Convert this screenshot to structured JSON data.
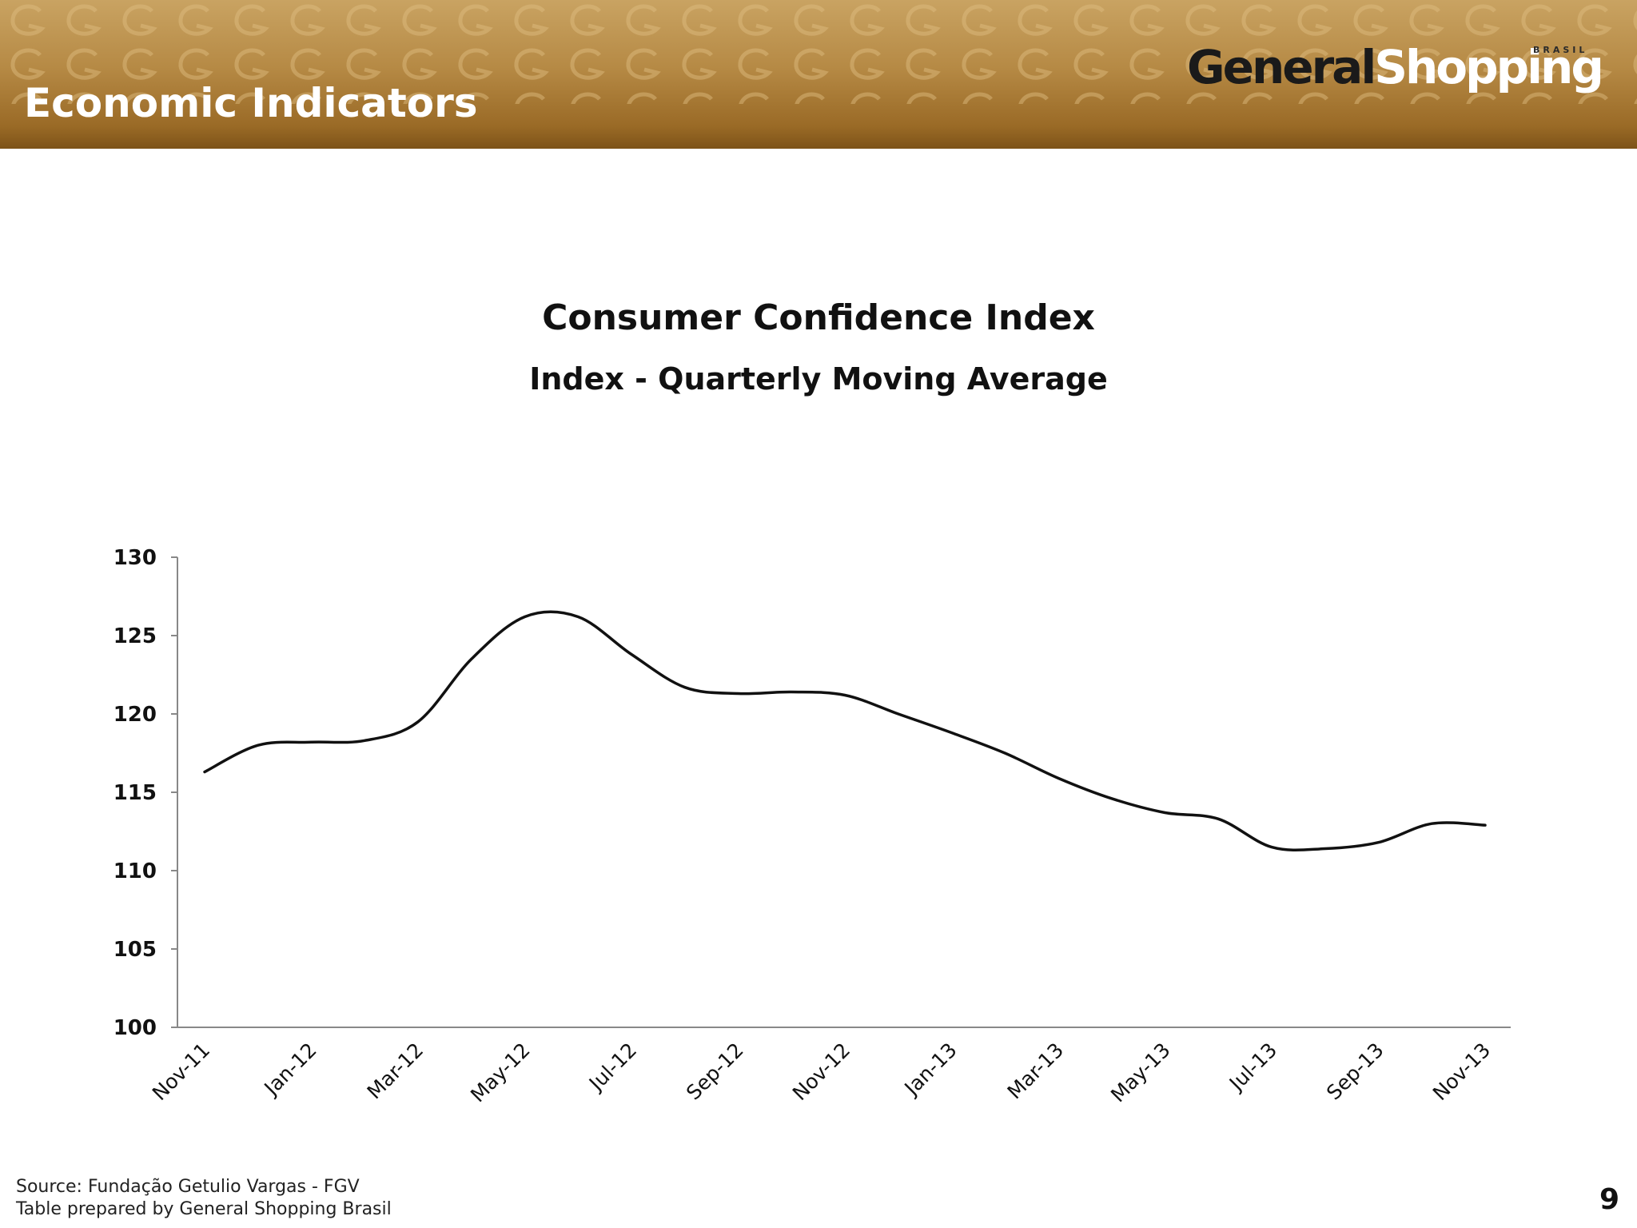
{
  "header": {
    "title": "Economic Indicators",
    "logo_general": "General",
    "logo_shopping": "Shopping",
    "logo_sub": "BRASIL"
  },
  "footer": {
    "source": "Source: Fundação Getulio Vargas - FGV",
    "prepared": "Table prepared by General Shopping Brasil",
    "page_number": "9"
  },
  "colors": {
    "header_gold": "#b68a45",
    "line": "#111111",
    "axis": "#888888"
  },
  "chart_data": {
    "type": "line",
    "title": "Consumer Confidence Index",
    "subtitle": "Index - Quarterly Moving Average",
    "xlabel": "",
    "ylabel": "",
    "ylim": [
      100,
      130
    ],
    "yticks": [
      "130",
      "125",
      "120",
      "115",
      "110",
      "105",
      "100"
    ],
    "x_tick_labels": [
      "Nov-11",
      "Jan-12",
      "Mar-12",
      "May-12",
      "Jul-12",
      "Sep-12",
      "Nov-12",
      "Jan-13",
      "Mar-13",
      "May-13",
      "Jul-13",
      "Sep-13",
      "Nov-13"
    ],
    "grid": false,
    "legend": "none",
    "x": [
      "Nov-11",
      "Dec-11",
      "Jan-12",
      "Feb-12",
      "Mar-12",
      "Apr-12",
      "May-12",
      "Jun-12",
      "Jul-12",
      "Aug-12",
      "Sep-12",
      "Oct-12",
      "Nov-12",
      "Dec-12",
      "Jan-13",
      "Feb-13",
      "Mar-13",
      "Apr-13",
      "May-13",
      "Jun-13",
      "Jul-13",
      "Aug-13",
      "Sep-13",
      "Oct-13",
      "Nov-13"
    ],
    "series": [
      {
        "values": [
          116.3,
          118.0,
          118.2,
          118.3,
          119.5,
          123.5,
          126.2,
          126.2,
          123.8,
          121.7,
          121.3,
          121.4,
          121.2,
          120.0,
          118.8,
          117.5,
          115.9,
          114.6,
          113.7,
          113.3,
          111.5,
          111.4,
          111.8,
          113.0,
          112.9
        ]
      }
    ]
  }
}
